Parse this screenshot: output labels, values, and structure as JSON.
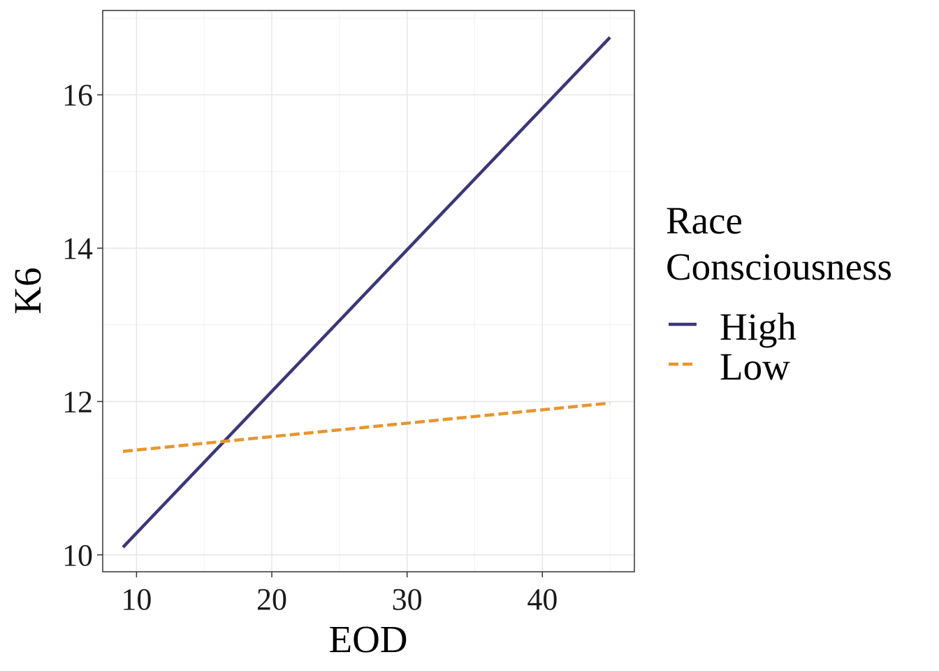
{
  "chart_data": {
    "type": "line",
    "xlabel": "EOD",
    "ylabel": "K6",
    "xlim": [
      7.5,
      46.8
    ],
    "ylim": [
      9.78,
      17.1
    ],
    "x_ticks": [
      10,
      20,
      30,
      40
    ],
    "y_ticks": [
      10,
      12,
      14,
      16
    ],
    "x_tick_labels": [
      "10",
      "20",
      "30",
      "40"
    ],
    "y_tick_labels": [
      "10",
      "12",
      "14",
      "16"
    ],
    "grid": true,
    "legend": {
      "title_lines": [
        "Race",
        "Consciousness"
      ],
      "position": "right"
    },
    "series": [
      {
        "name": "High",
        "color": "#3b3777",
        "dash": "solid",
        "x": [
          9,
          45
        ],
        "y": [
          10.1,
          16.75
        ]
      },
      {
        "name": "Low",
        "color": "#e8952e",
        "dash": "dashed",
        "x": [
          9,
          45
        ],
        "y": [
          11.35,
          11.98
        ]
      }
    ]
  }
}
